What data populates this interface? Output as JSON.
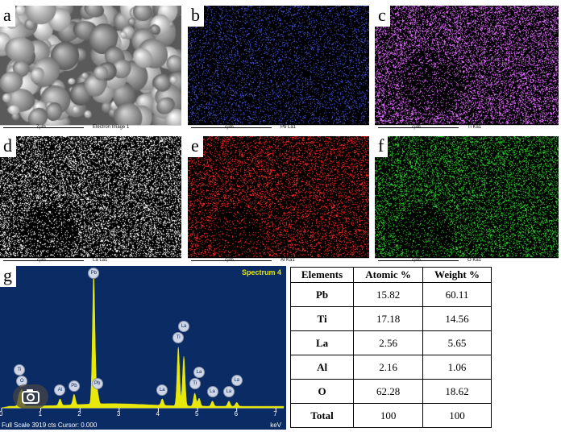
{
  "panels": [
    {
      "id": "a",
      "tag": "a",
      "scale": "7µm",
      "caption": "Electron Image 1"
    },
    {
      "id": "b",
      "tag": "b",
      "scale": "7µm",
      "caption": "Pb La1",
      "color": "#4a55d8"
    },
    {
      "id": "c",
      "tag": "c",
      "scale": "7µm",
      "caption": "Ti Ka1",
      "color": "#e070ff"
    },
    {
      "id": "d",
      "tag": "d",
      "scale": "7µm",
      "caption": "La La1",
      "color": "#ffffff"
    },
    {
      "id": "e",
      "tag": "e",
      "scale": "7µm",
      "caption": "Al Ka1",
      "color": "#ff2a2a"
    },
    {
      "id": "f",
      "tag": "f",
      "scale": "7µm",
      "caption": "O Ka1",
      "color": "#33cc33"
    }
  ],
  "spectrum": {
    "tag": "g",
    "title": "Spectrum 4",
    "footer": "Full Scale 3919 cts Cursor: 0.000",
    "unit": "keV",
    "x_ticks": [
      "0",
      "1",
      "2",
      "3",
      "4",
      "5",
      "6",
      "7"
    ]
  },
  "chart_data": {
    "type": "line",
    "title": "Spectrum 4",
    "xlabel": "keV",
    "xlim": [
      0,
      7.2
    ],
    "full_scale_counts": 3919,
    "peaks": [
      {
        "label": "O",
        "energy": 0.52,
        "rel_height": 0.12
      },
      {
        "label": "Ti",
        "energy": 0.45,
        "rel_height": 0.09
      },
      {
        "label": "Al",
        "energy": 1.49,
        "rel_height": 0.05
      },
      {
        "label": "Pb",
        "energy": 1.85,
        "rel_height": 0.08
      },
      {
        "label": "Pb",
        "energy": 2.35,
        "rel_height": 1.0
      },
      {
        "label": "Pb",
        "energy": 2.44,
        "rel_height": 0.1
      },
      {
        "label": "Ti",
        "energy": 4.51,
        "rel_height": 0.45
      },
      {
        "label": "La",
        "energy": 4.65,
        "rel_height": 0.38
      },
      {
        "label": "La",
        "energy": 4.1,
        "rel_height": 0.05
      },
      {
        "label": "Ti",
        "energy": 4.93,
        "rel_height": 0.1
      },
      {
        "label": "La",
        "energy": 5.04,
        "rel_height": 0.06
      },
      {
        "label": "La",
        "energy": 5.38,
        "rel_height": 0.04
      },
      {
        "label": "La",
        "energy": 5.8,
        "rel_height": 0.04
      },
      {
        "label": "La",
        "energy": 6.0,
        "rel_height": 0.03
      }
    ]
  },
  "table": {
    "headers": [
      "Elements",
      "Atomic %",
      "Weight %"
    ],
    "rows": [
      [
        "Pb",
        "15.82",
        "60.11"
      ],
      [
        "Ti",
        "17.18",
        "14.56"
      ],
      [
        "La",
        "2.56",
        "5.65"
      ],
      [
        "Al",
        "2.16",
        "1.06"
      ],
      [
        "O",
        "62.28",
        "18.62"
      ],
      [
        "Total",
        "100",
        "100"
      ]
    ]
  }
}
